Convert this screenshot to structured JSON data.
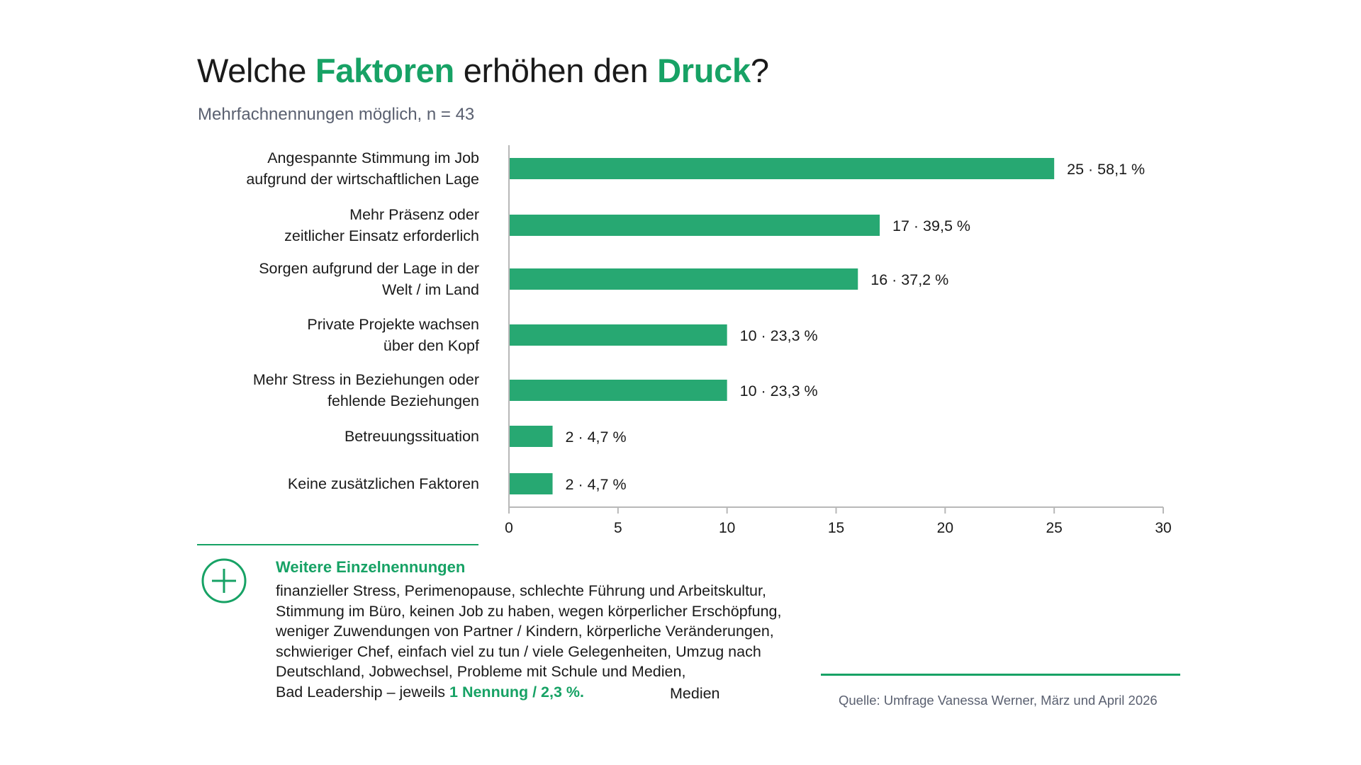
{
  "title": {
    "part1": "Welche ",
    "hl1": "Faktoren",
    "part2": " erhöhen den ",
    "hl2": "Druck",
    "part3": "?"
  },
  "subtitle": "Mehrfachnennungen möglich, n = 43",
  "colors": {
    "accent": "#17a265",
    "bar": "#27a872",
    "axis": "#b8b8b8"
  },
  "chart_data": {
    "type": "bar",
    "orientation": "horizontal",
    "categories": [
      [
        "Angespannte Stimmung im Job",
        "aufgrund der wirtschaftlichen Lage"
      ],
      [
        "Mehr Präsenz oder",
        "zeitlicher Einsatz erforderlich"
      ],
      [
        "Sorgen aufgrund der Lage in der",
        "Welt / im Land"
      ],
      [
        "Private Projekte wachsen",
        "über den Kopf"
      ],
      [
        "Mehr Stress in Beziehungen oder",
        "fehlende Beziehungen"
      ],
      [
        "Betreuungssituation"
      ],
      [
        "Keine zusätzlichen Faktoren"
      ]
    ],
    "values": [
      25,
      17,
      16,
      10,
      10,
      2,
      2
    ],
    "data_labels": [
      "25 · 58,1 %",
      "17 · 39,5 %",
      "16 · 37,2 %",
      "10 · 23,3 %",
      "10 · 23,3 %",
      "2 · 4,7 %",
      "2 · 4,7 %"
    ],
    "xlim": [
      0,
      30
    ],
    "xticks": [
      0,
      5,
      10,
      15,
      20,
      25,
      30
    ],
    "grid": false
  },
  "more": {
    "heading": "Weitere Einzelnennungen",
    "lines": [
      "finanzieller Stress, Perimenopause, schlechte Führung und Arbeitskultur,",
      "Stimmung im Büro, keinen Job zu haben, wegen körperlicher Erschöpfung,",
      "weniger Zuwendungen von Partner / Kindern, körperliche Veränderungen,",
      "schwieriger Chef, einfach viel zu tun / viele Gelegenheiten, Umzug nach",
      "Deutschland, Jobwechsel, Probleme mit Schule und Medien,"
    ],
    "last_line_prefix": "Bad Leadership – jeweils ",
    "last_line_highlight": "1 Nennung / 2,3 %."
  },
  "medien": "Medien",
  "source": "Quelle: Umfrage Vanessa Werner, März und April 2026"
}
